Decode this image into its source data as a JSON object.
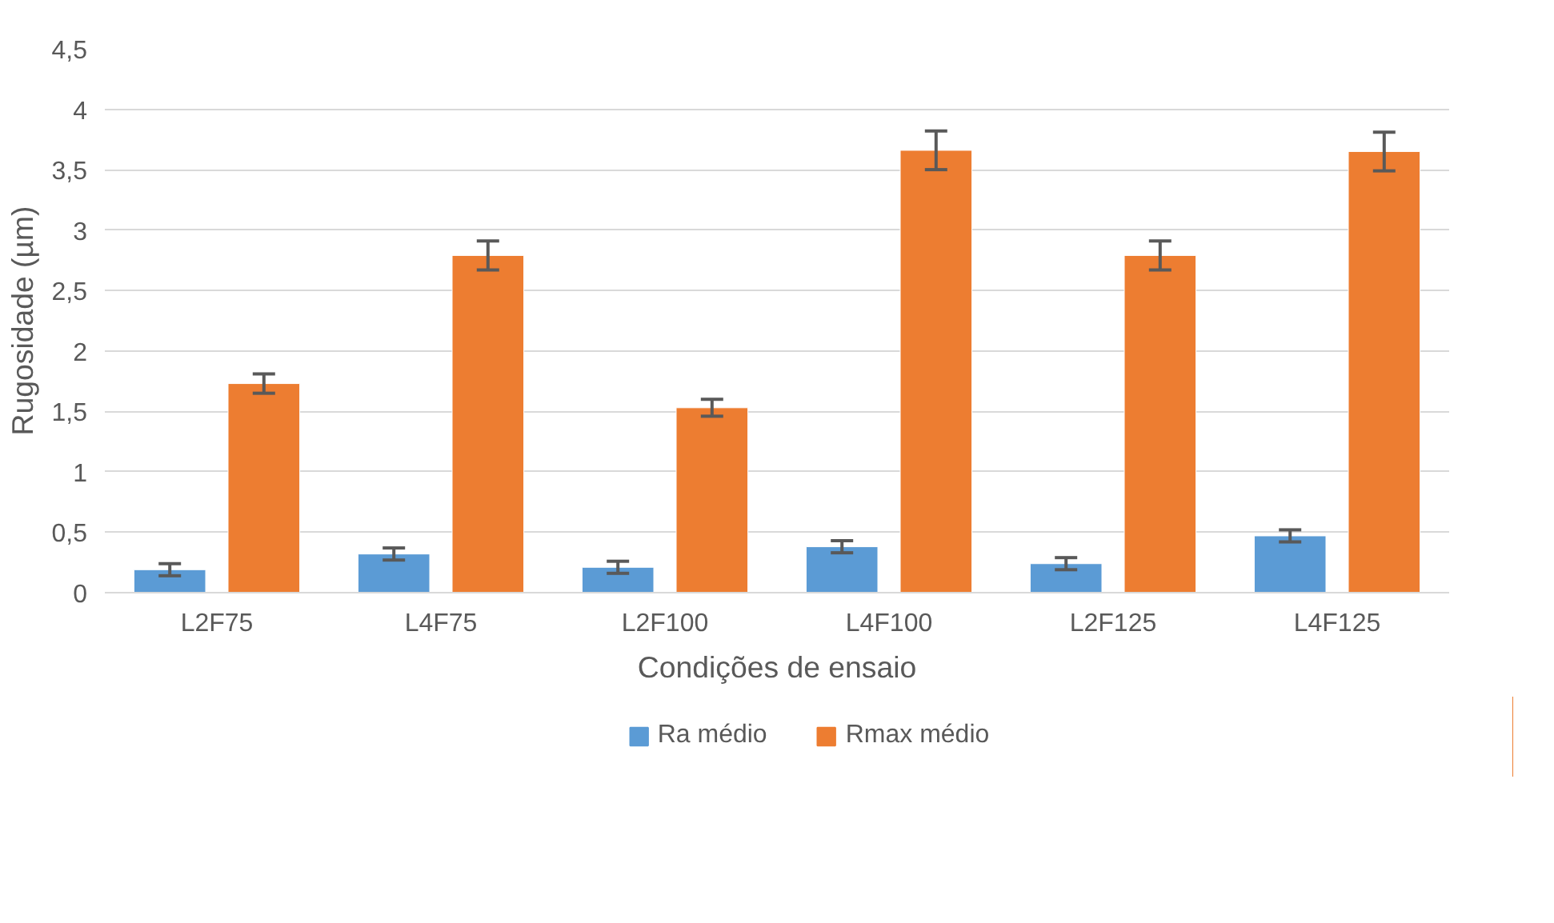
{
  "chart_data": {
    "type": "bar",
    "xlabel": "Condições de ensaio",
    "ylabel": "Rugosidade (µm)",
    "categories": [
      "L2F75",
      "L4F75",
      "L2F100",
      "L4F100",
      "L2F125",
      "L4F125"
    ],
    "series": [
      {
        "name": "Ra médio",
        "color": "#5b9bd5",
        "values": [
          0.19,
          0.32,
          0.21,
          0.38,
          0.24,
          0.47
        ],
        "errors": [
          0.05,
          0.05,
          0.05,
          0.05,
          0.05,
          0.05
        ]
      },
      {
        "name": "Rmax médio",
        "color": "#ed7d31",
        "values": [
          1.73,
          2.79,
          1.53,
          3.66,
          2.79,
          3.65
        ],
        "errors": [
          0.08,
          0.12,
          0.07,
          0.16,
          0.12,
          0.16
        ]
      }
    ],
    "ylim": [
      0,
      4.5
    ],
    "yticks": [
      0,
      {
        "value": 0.5,
        "label": "0,5"
      },
      1,
      {
        "value": 1.5,
        "label": "1,5"
      },
      2,
      {
        "value": 2.5,
        "label": "2,5"
      },
      3,
      {
        "value": 3.5,
        "label": "3,5"
      },
      4,
      {
        "value": 4.5,
        "label": "4,5"
      }
    ],
    "grid": "y",
    "legend": "bottom"
  }
}
